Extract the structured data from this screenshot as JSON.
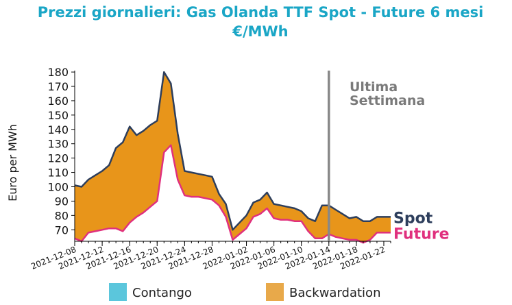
{
  "chart_data": {
    "type": "area",
    "title_line1": "Prezzi giornalieri: Gas Olanda TTF Spot - Future 6 mesi",
    "title_line2": "€/MWh",
    "ylabel": "Euro per MWh",
    "ylim": [
      62,
      181
    ],
    "yticks": [
      70,
      80,
      90,
      100,
      110,
      120,
      130,
      140,
      150,
      160,
      170,
      180
    ],
    "xticks": [
      "2021-12-08",
      "2021-12-12",
      "2021-12-16",
      "2021-12-20",
      "2021-12-24",
      "2021-12-28",
      "2022-01-02",
      "2022-01-06",
      "2022-01-10",
      "2022-01-14",
      "2022-01-18",
      "2022-01-22"
    ],
    "x_start": "2021-12-08",
    "x_end": "2022-01-23",
    "series": [
      {
        "name": "Spot",
        "color": "#2d3e5c",
        "points": [
          [
            "2021-12-08",
            101
          ],
          [
            "2021-12-09",
            100
          ],
          [
            "2021-12-10",
            105
          ],
          [
            "2021-12-11",
            108
          ],
          [
            "2021-12-12",
            111
          ],
          [
            "2021-12-13",
            115
          ],
          [
            "2021-12-14",
            127
          ],
          [
            "2021-12-15",
            131
          ],
          [
            "2021-12-16",
            142
          ],
          [
            "2021-12-17",
            136
          ],
          [
            "2021-12-18",
            139
          ],
          [
            "2021-12-19",
            143
          ],
          [
            "2021-12-20",
            146
          ],
          [
            "2021-12-21",
            180
          ],
          [
            "2021-12-22",
            172
          ],
          [
            "2021-12-23",
            137
          ],
          [
            "2021-12-24",
            111
          ],
          [
            "2021-12-25",
            110
          ],
          [
            "2021-12-26",
            109
          ],
          [
            "2021-12-27",
            108
          ],
          [
            "2021-12-28",
            107
          ],
          [
            "2021-12-29",
            95
          ],
          [
            "2021-12-30",
            88
          ],
          [
            "2021-12-31",
            70
          ],
          [
            "2022-01-01",
            75
          ],
          [
            "2022-01-02",
            80
          ],
          [
            "2022-01-03",
            89
          ],
          [
            "2022-01-04",
            91
          ],
          [
            "2022-01-05",
            96
          ],
          [
            "2022-01-06",
            88
          ],
          [
            "2022-01-07",
            87
          ],
          [
            "2022-01-08",
            86
          ],
          [
            "2022-01-09",
            85
          ],
          [
            "2022-01-10",
            83
          ],
          [
            "2022-01-11",
            78
          ],
          [
            "2022-01-12",
            76
          ],
          [
            "2022-01-13",
            87
          ],
          [
            "2022-01-14",
            87
          ],
          [
            "2022-01-15",
            84
          ],
          [
            "2022-01-16",
            81
          ],
          [
            "2022-01-17",
            78
          ],
          [
            "2022-01-18",
            79
          ],
          [
            "2022-01-19",
            76
          ],
          [
            "2022-01-20",
            76
          ],
          [
            "2022-01-21",
            79
          ],
          [
            "2022-01-22",
            79
          ],
          [
            "2022-01-23",
            79
          ]
        ]
      },
      {
        "name": "Future",
        "color": "#e0307e",
        "points": [
          [
            "2021-12-08",
            64
          ],
          [
            "2021-12-09",
            62
          ],
          [
            "2021-12-10",
            68
          ],
          [
            "2021-12-11",
            69
          ],
          [
            "2021-12-12",
            70
          ],
          [
            "2021-12-13",
            71
          ],
          [
            "2021-12-14",
            71
          ],
          [
            "2021-12-15",
            69
          ],
          [
            "2021-12-16",
            75
          ],
          [
            "2021-12-17",
            79
          ],
          [
            "2021-12-18",
            82
          ],
          [
            "2021-12-19",
            86
          ],
          [
            "2021-12-20",
            90
          ],
          [
            "2021-12-21",
            124
          ],
          [
            "2021-12-22",
            129
          ],
          [
            "2021-12-23",
            105
          ],
          [
            "2021-12-24",
            94
          ],
          [
            "2021-12-25",
            93
          ],
          [
            "2021-12-26",
            93
          ],
          [
            "2021-12-27",
            92
          ],
          [
            "2021-12-28",
            91
          ],
          [
            "2021-12-29",
            87
          ],
          [
            "2021-12-30",
            79
          ],
          [
            "2021-12-31",
            63
          ],
          [
            "2022-01-01",
            67
          ],
          [
            "2022-01-02",
            71
          ],
          [
            "2022-01-03",
            79
          ],
          [
            "2022-01-04",
            81
          ],
          [
            "2022-01-05",
            85
          ],
          [
            "2022-01-06",
            78
          ],
          [
            "2022-01-07",
            77
          ],
          [
            "2022-01-08",
            77
          ],
          [
            "2022-01-09",
            76
          ],
          [
            "2022-01-10",
            76
          ],
          [
            "2022-01-11",
            69
          ],
          [
            "2022-01-12",
            64
          ],
          [
            "2022-01-13",
            64
          ],
          [
            "2022-01-14",
            67
          ],
          [
            "2022-01-15",
            65
          ],
          [
            "2022-01-16",
            64
          ],
          [
            "2022-01-17",
            63
          ],
          [
            "2022-01-18",
            63
          ],
          [
            "2022-01-19",
            61
          ],
          [
            "2022-01-20",
            63
          ],
          [
            "2022-01-21",
            68
          ],
          [
            "2022-01-22",
            68
          ],
          [
            "2022-01-23",
            68
          ]
        ]
      }
    ],
    "vline": {
      "x": "2022-01-14",
      "label_line1": "Ultima",
      "label_line2": "Settimana",
      "color": "#888888"
    },
    "fills": {
      "backwardation_color": "#e8951a",
      "contango_color": "#5bc6dc"
    },
    "legend": [
      {
        "label": "Contango",
        "color": "#5bc6dc"
      },
      {
        "label": "Backwardation",
        "color": "#e8a94a"
      }
    ],
    "grid": false
  }
}
